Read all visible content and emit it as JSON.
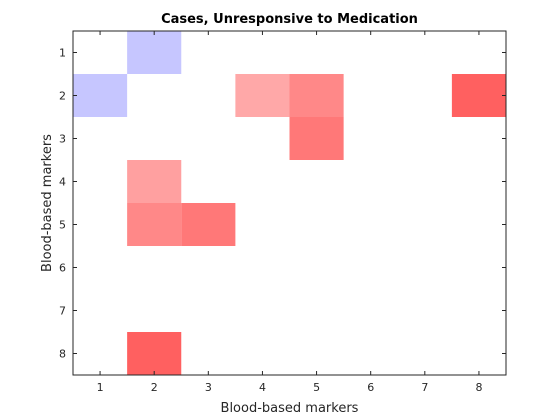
{
  "chart_data": {
    "type": "heatmap",
    "title": "Cases, Unresponsive to Medication",
    "xlabel": "Blood-based markers",
    "ylabel": "Blood-based markers",
    "x_categories": [
      "1",
      "2",
      "3",
      "4",
      "5",
      "6",
      "7",
      "8"
    ],
    "y_categories": [
      "1",
      "2",
      "3",
      "4",
      "5",
      "6",
      "7",
      "8"
    ],
    "y_direction": "top-to-bottom",
    "grid": false,
    "colors": {
      "negative": "#a0a0ff",
      "positive": "#ff6060",
      "axis": "#262626",
      "background": "#ffffff"
    },
    "cells": [
      {
        "x": 2,
        "y": 1,
        "value": -0.6
      },
      {
        "x": 1,
        "y": 2,
        "value": -0.6
      },
      {
        "x": 4,
        "y": 2,
        "value": 0.55
      },
      {
        "x": 5,
        "y": 2,
        "value": 0.75
      },
      {
        "x": 8,
        "y": 2,
        "value": 1.0
      },
      {
        "x": 5,
        "y": 3,
        "value": 0.85
      },
      {
        "x": 2,
        "y": 4,
        "value": 0.6
      },
      {
        "x": 2,
        "y": 5,
        "value": 0.75
      },
      {
        "x": 3,
        "y": 5,
        "value": 0.85
      },
      {
        "x": 2,
        "y": 8,
        "value": 1.0
      }
    ]
  }
}
